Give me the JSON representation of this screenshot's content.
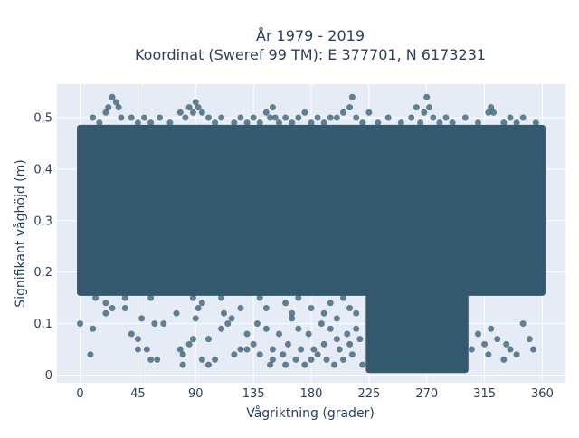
{
  "chart_data": {
    "type": "scatter",
    "title_line1": "År 1979 - 2019",
    "title_line2": "Koordinat (Sweref 99 TM): E 377701, N 6173231",
    "xlabel": "Vågriktning (grader)",
    "ylabel": "Signifikant våghöjd (m)",
    "xlim": [
      -18,
      378
    ],
    "ylim": [
      -0.015,
      0.565
    ],
    "x_ticks": [
      0,
      45,
      90,
      135,
      180,
      225,
      270,
      315,
      360
    ],
    "x_tick_labels": [
      "0",
      "45",
      "90",
      "135",
      "180",
      "225",
      "270",
      "315",
      "360"
    ],
    "y_ticks": [
      0,
      0.1,
      0.2,
      0.3,
      0.4,
      0.5
    ],
    "y_tick_labels": [
      "0",
      "0,1",
      "0,2",
      "0,3",
      "0,4",
      "0,5"
    ],
    "grid": true,
    "colors": {
      "marker": "#34586e",
      "plot_background": "#e5ecf6",
      "grid": "#ffffff"
    },
    "series": [
      {
        "dense_band": {
          "x_range": [
            0,
            360
          ],
          "y_range": [
            0.16,
            0.48
          ]
        },
        "dense_low_cluster": {
          "x_range": [
            225,
            300
          ],
          "y_range": [
            0.01,
            0.16
          ]
        },
        "points": [
          [
            7,
            0.16
          ],
          [
            12,
            0.15
          ],
          [
            15,
            0.18
          ],
          [
            20,
            0.14
          ],
          [
            25,
            0.17
          ],
          [
            30,
            0.16
          ],
          [
            35,
            0.15
          ],
          [
            40,
            0.18
          ],
          [
            50,
            0.17
          ],
          [
            55,
            0.15
          ],
          [
            60,
            0.19
          ],
          [
            70,
            0.16
          ],
          [
            80,
            0.18
          ],
          [
            88,
            0.15
          ],
          [
            95,
            0.14
          ],
          [
            100,
            0.17
          ],
          [
            110,
            0.15
          ],
          [
            120,
            0.18
          ],
          [
            125,
            0.13
          ],
          [
            130,
            0.16
          ],
          [
            140,
            0.15
          ],
          [
            145,
            0.13
          ],
          [
            150,
            0.16
          ],
          [
            160,
            0.14
          ],
          [
            165,
            0.12
          ],
          [
            170,
            0.15
          ],
          [
            180,
            0.13
          ],
          [
            185,
            0.16
          ],
          [
            190,
            0.12
          ],
          [
            195,
            0.14
          ],
          [
            200,
            0.11
          ],
          [
            205,
            0.15
          ],
          [
            210,
            0.13
          ],
          [
            215,
            0.12
          ],
          [
            310,
            0.17
          ],
          [
            320,
            0.18
          ],
          [
            330,
            0.16
          ],
          [
            340,
            0.19
          ],
          [
            350,
            0.17
          ],
          [
            355,
            0.16
          ],
          [
            0,
            0.1
          ],
          [
            10,
            0.09
          ],
          [
            8,
            0.04
          ],
          [
            20,
            0.12
          ],
          [
            25,
            0.13
          ],
          [
            35,
            0.13
          ],
          [
            40,
            0.08
          ],
          [
            45,
            0.07
          ],
          [
            48,
            0.11
          ],
          [
            45,
            0.05
          ],
          [
            52,
            0.05
          ],
          [
            55,
            0.03
          ],
          [
            60,
            0.03
          ],
          [
            58,
            0.1
          ],
          [
            65,
            0.1
          ],
          [
            75,
            0.12
          ],
          [
            78,
            0.05
          ],
          [
            80,
            0.02
          ],
          [
            80,
            0.04
          ],
          [
            85,
            0.06
          ],
          [
            88,
            0.07
          ],
          [
            90,
            0.11
          ],
          [
            92,
            0.13
          ],
          [
            95,
            0.03
          ],
          [
            100,
            0.02
          ],
          [
            100,
            0.07
          ],
          [
            105,
            0.03
          ],
          [
            110,
            0.09
          ],
          [
            112,
            0.12
          ],
          [
            115,
            0.1
          ],
          [
            118,
            0.11
          ],
          [
            120,
            0.04
          ],
          [
            125,
            0.05
          ],
          [
            130,
            0.08
          ],
          [
            130,
            0.05
          ],
          [
            135,
            0.06
          ],
          [
            138,
            0.1
          ],
          [
            140,
            0.04
          ],
          [
            145,
            0.09
          ],
          [
            148,
            0.02
          ],
          [
            150,
            0.05
          ],
          [
            150,
            0.03
          ],
          [
            155,
            0.08
          ],
          [
            158,
            0.04
          ],
          [
            160,
            0.02
          ],
          [
            162,
            0.06
          ],
          [
            165,
            0.11
          ],
          [
            168,
            0.03
          ],
          [
            170,
            0.09
          ],
          [
            172,
            0.05
          ],
          [
            175,
            0.02
          ],
          [
            178,
            0.08
          ],
          [
            180,
            0.03
          ],
          [
            182,
            0.05
          ],
          [
            185,
            0.04
          ],
          [
            188,
            0.1
          ],
          [
            190,
            0.06
          ],
          [
            192,
            0.03
          ],
          [
            195,
            0.09
          ],
          [
            198,
            0.02
          ],
          [
            200,
            0.07
          ],
          [
            202,
            0.05
          ],
          [
            205,
            0.03
          ],
          [
            208,
            0.08
          ],
          [
            210,
            0.06
          ],
          [
            212,
            0.04
          ],
          [
            215,
            0.09
          ],
          [
            218,
            0.07
          ],
          [
            220,
            0.02
          ],
          [
            305,
            0.05
          ],
          [
            310,
            0.08
          ],
          [
            315,
            0.06
          ],
          [
            318,
            0.04
          ],
          [
            320,
            0.09
          ],
          [
            325,
            0.07
          ],
          [
            330,
            0.03
          ],
          [
            332,
            0.06
          ],
          [
            335,
            0.05
          ],
          [
            340,
            0.04
          ],
          [
            345,
            0.1
          ],
          [
            350,
            0.07
          ],
          [
            353,
            0.05
          ],
          [
            10,
            0.5
          ],
          [
            15,
            0.49
          ],
          [
            20,
            0.51
          ],
          [
            22,
            0.52
          ],
          [
            25,
            0.54
          ],
          [
            28,
            0.53
          ],
          [
            30,
            0.52
          ],
          [
            32,
            0.5
          ],
          [
            40,
            0.5
          ],
          [
            45,
            0.49
          ],
          [
            50,
            0.5
          ],
          [
            55,
            0.49
          ],
          [
            62,
            0.5
          ],
          [
            70,
            0.49
          ],
          [
            78,
            0.51
          ],
          [
            82,
            0.5
          ],
          [
            85,
            0.52
          ],
          [
            88,
            0.51
          ],
          [
            90,
            0.53
          ],
          [
            92,
            0.52
          ],
          [
            95,
            0.51
          ],
          [
            100,
            0.5
          ],
          [
            105,
            0.49
          ],
          [
            110,
            0.5
          ],
          [
            120,
            0.49
          ],
          [
            125,
            0.5
          ],
          [
            130,
            0.49
          ],
          [
            135,
            0.5
          ],
          [
            140,
            0.49
          ],
          [
            145,
            0.51
          ],
          [
            148,
            0.5
          ],
          [
            150,
            0.52
          ],
          [
            152,
            0.5
          ],
          [
            155,
            0.49
          ],
          [
            160,
            0.5
          ],
          [
            165,
            0.49
          ],
          [
            170,
            0.5
          ],
          [
            175,
            0.51
          ],
          [
            180,
            0.49
          ],
          [
            185,
            0.5
          ],
          [
            190,
            0.49
          ],
          [
            195,
            0.5
          ],
          [
            200,
            0.5
          ],
          [
            205,
            0.51
          ],
          [
            210,
            0.52
          ],
          [
            212,
            0.54
          ],
          [
            215,
            0.5
          ],
          [
            220,
            0.49
          ],
          [
            225,
            0.51
          ],
          [
            232,
            0.49
          ],
          [
            240,
            0.5
          ],
          [
            250,
            0.49
          ],
          [
            258,
            0.5
          ],
          [
            262,
            0.52
          ],
          [
            265,
            0.49
          ],
          [
            268,
            0.51
          ],
          [
            270,
            0.54
          ],
          [
            272,
            0.52
          ],
          [
            275,
            0.5
          ],
          [
            280,
            0.49
          ],
          [
            285,
            0.5
          ],
          [
            290,
            0.49
          ],
          [
            300,
            0.5
          ],
          [
            310,
            0.49
          ],
          [
            318,
            0.51
          ],
          [
            320,
            0.52
          ],
          [
            322,
            0.51
          ],
          [
            330,
            0.49
          ],
          [
            335,
            0.5
          ],
          [
            340,
            0.49
          ],
          [
            345,
            0.5
          ],
          [
            355,
            0.49
          ]
        ]
      }
    ]
  }
}
